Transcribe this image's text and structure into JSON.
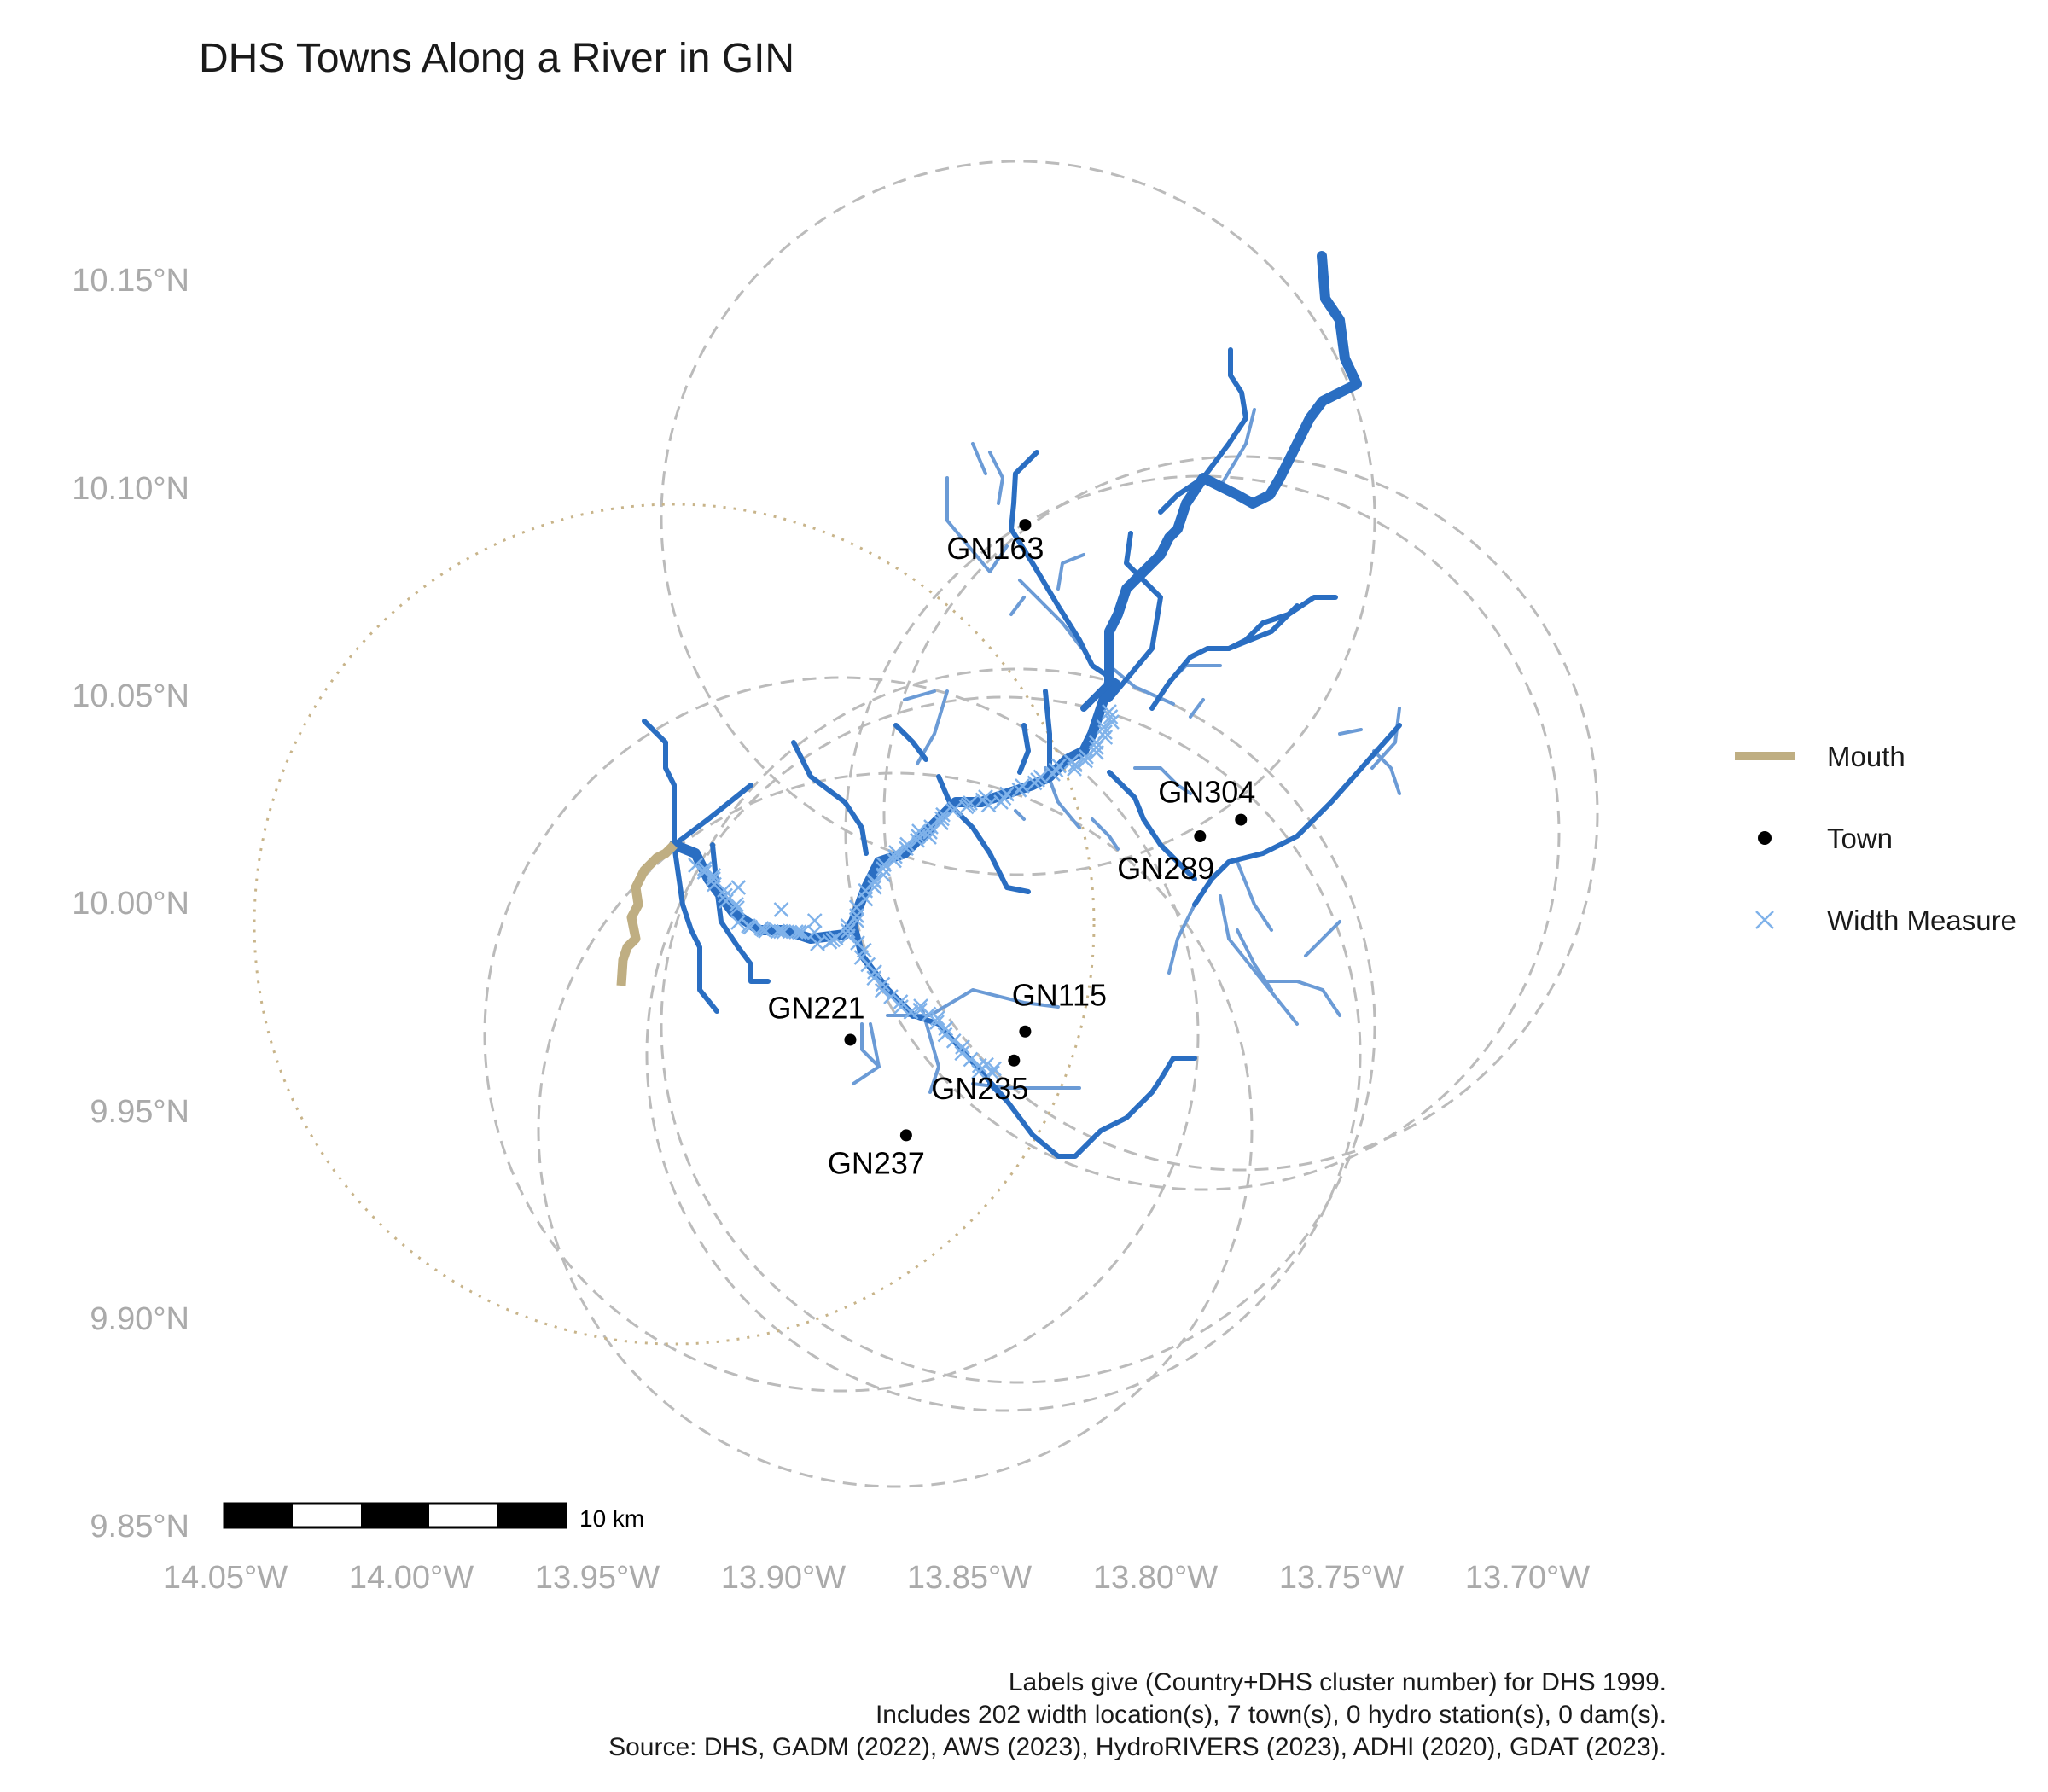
{
  "title": "DHS Towns Along a River in GIN",
  "y_axis_labels": [
    "10.15°N",
    "10.10°N",
    "10.05°N",
    "10.00°N",
    "9.95°N",
    "9.90°N",
    "9.85°N"
  ],
  "x_axis_labels": [
    "14.05°W",
    "14.00°W",
    "13.95°W",
    "13.90°W",
    "13.85°W",
    "13.80°W",
    "13.75°W",
    "13.70°W"
  ],
  "towns": [
    {
      "label": "GN163",
      "lon": -13.835,
      "lat": 10.091
    },
    {
      "label": "GN304",
      "lon": -13.777,
      "lat": 10.02
    },
    {
      "label": "GN289",
      "lon": -13.788,
      "lat": 10.016
    },
    {
      "label": "GN115",
      "lon": -13.835,
      "lat": 9.969
    },
    {
      "label": "GN221",
      "lon": -13.882,
      "lat": 9.967
    },
    {
      "label": "GN235",
      "lon": -13.838,
      "lat": 9.962
    },
    {
      "label": "GN237",
      "lon": -13.867,
      "lat": 9.944
    }
  ],
  "legend": {
    "mouth": "Mouth",
    "town": "Town",
    "width_measure": "Width Measure"
  },
  "scale_bar": {
    "label": "10 km"
  },
  "caption": [
    "Labels give (Country+DHS cluster number) for DHS 1999.",
    "Includes 202 width location(s), 7 town(s), 0 hydro station(s), 0 dam(s).",
    "Source: DHS, GADM (2022), AWS (2023), HydroRIVERS (2023), ADHI (2020), GDAT (2023)."
  ],
  "colors": {
    "river": "#2a6ec2",
    "river_light": "#6b9bd6",
    "mouth": "#bfae82",
    "width_measure": "#7fb2ea",
    "buffer_circle": "#bbbbbb",
    "mouth_circle": "#c8b48a"
  }
}
